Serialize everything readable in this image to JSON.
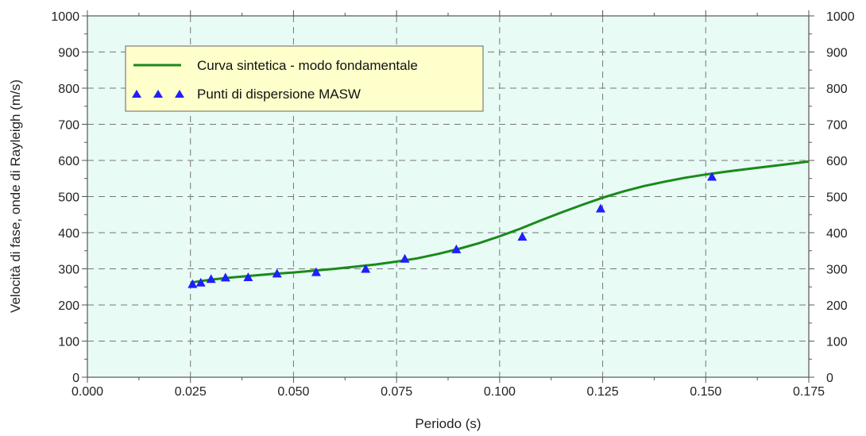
{
  "chart_data": {
    "type": "line",
    "xlabel": "Periodo (s)",
    "ylabel": "Velocità di fase, onde di Rayleigh (m/s)",
    "xlim": [
      0.0,
      0.175
    ],
    "ylim": [
      0,
      1000
    ],
    "x_ticks": [
      "0.000",
      "0.025",
      "0.050",
      "0.075",
      "0.100",
      "0.125",
      "0.150",
      "0.175"
    ],
    "x_tick_values": [
      0.0,
      0.025,
      0.05,
      0.075,
      0.1,
      0.125,
      0.15,
      0.175
    ],
    "y_ticks": [
      "0",
      "100",
      "200",
      "300",
      "400",
      "500",
      "600",
      "700",
      "800",
      "900",
      "1000"
    ],
    "y_tick_values": [
      0,
      100,
      200,
      300,
      400,
      500,
      600,
      700,
      800,
      900,
      1000
    ],
    "grid": true,
    "legend_position": "top-left",
    "series": [
      {
        "name": "Curva sintetica - modo fondamentale",
        "kind": "line",
        "color": "#1a8a1a",
        "x": [
          0.025,
          0.03,
          0.035,
          0.04,
          0.045,
          0.05,
          0.055,
          0.06,
          0.065,
          0.07,
          0.075,
          0.08,
          0.085,
          0.09,
          0.095,
          0.1,
          0.105,
          0.11,
          0.115,
          0.12,
          0.125,
          0.13,
          0.135,
          0.14,
          0.145,
          0.15,
          0.155,
          0.16,
          0.165,
          0.17,
          0.175
        ],
        "y": [
          262,
          270,
          276,
          281,
          286,
          290,
          295,
          300,
          306,
          312,
          320,
          329,
          341,
          355,
          371,
          390,
          411,
          434,
          456,
          477,
          497,
          514,
          529,
          541,
          552,
          561,
          569,
          576,
          583,
          590,
          597
        ]
      },
      {
        "name": "Punti di dispersione MASW",
        "kind": "scatter",
        "marker": "triangle",
        "color": "#1f1fff",
        "x": [
          0.0255,
          0.0275,
          0.03,
          0.0335,
          0.039,
          0.046,
          0.0555,
          0.0675,
          0.077,
          0.0895,
          0.1055,
          0.1245,
          0.1515
        ],
        "y": [
          258,
          262,
          272,
          276,
          277,
          287,
          291,
          300,
          328,
          354,
          389,
          467,
          555
        ]
      }
    ]
  },
  "colors": {
    "plot_background": "#e8fbf5",
    "legend_background": "#ffffcc",
    "grid": "#777777",
    "frame": "#555555"
  }
}
